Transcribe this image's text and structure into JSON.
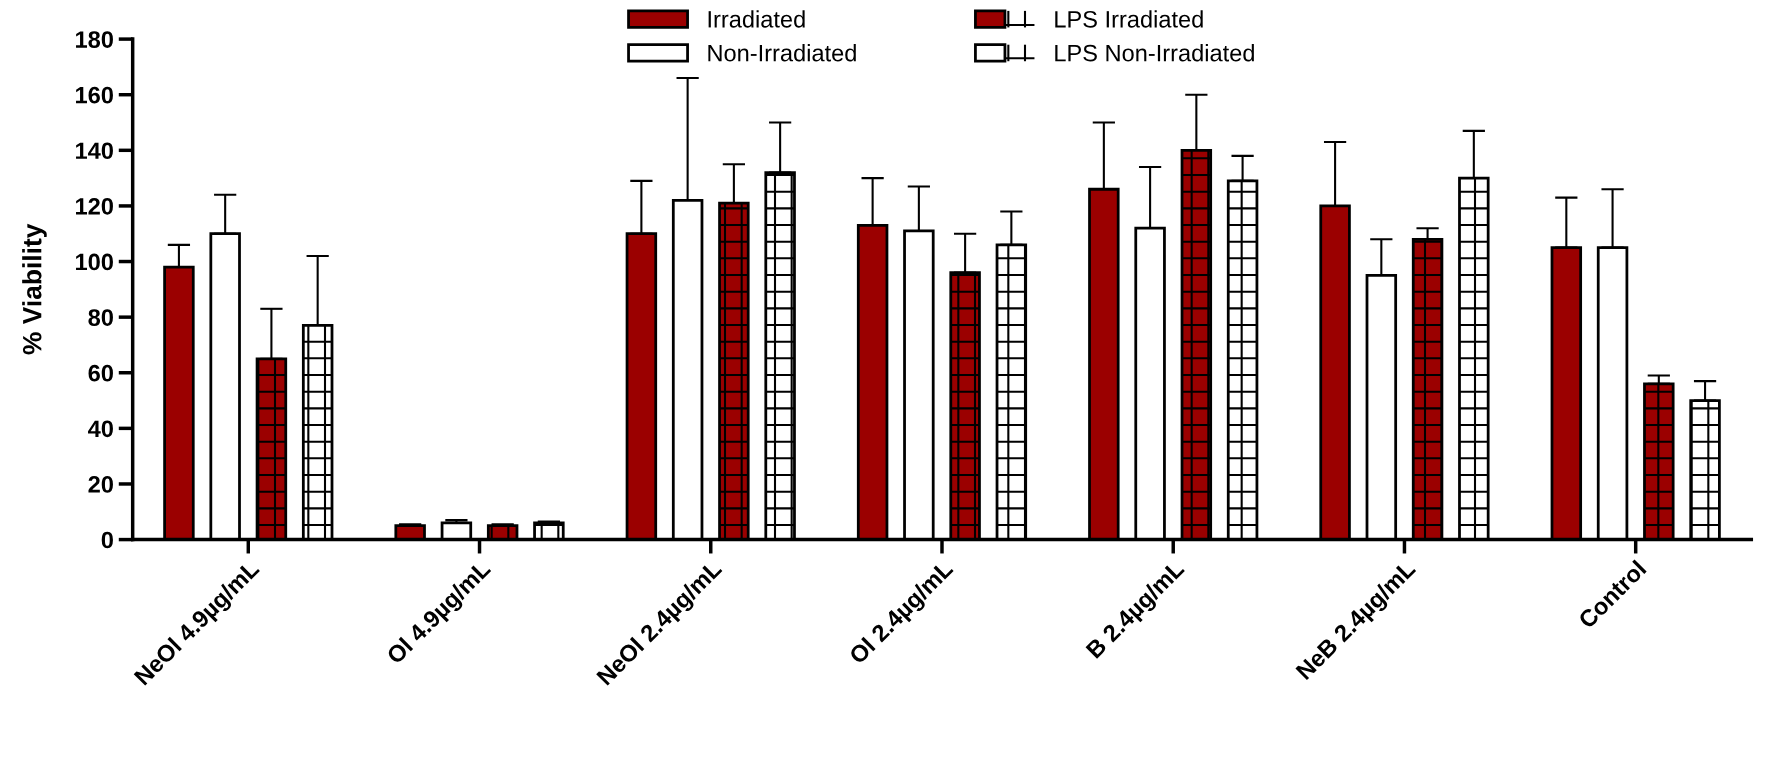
{
  "chart_data": {
    "type": "bar",
    "ylabel": "% Viability",
    "categories": [
      "NeOl 4.9µg/mL",
      "Ol 4.9µg/mL",
      "NeOl 2.4µg/mL",
      "Ol 2.4µg/mL",
      "B 2.4µg/mL",
      "NeB 2.4µg/mL",
      "Control"
    ],
    "series": [
      {
        "name": "Irradiated",
        "color": "#9b0000",
        "values": [
          98,
          5,
          110,
          113,
          126,
          120,
          105
        ],
        "errors": [
          [
            98,
            106
          ],
          [
            5,
            5.5
          ],
          [
            110,
            129
          ],
          [
            113,
            130
          ],
          [
            126,
            150
          ],
          [
            120,
            143
          ],
          [
            105,
            123
          ]
        ]
      },
      {
        "name": "Non-Irradiated",
        "color": "#ffffff",
        "values": [
          110,
          6,
          122,
          111,
          112,
          95,
          105
        ],
        "errors": [
          [
            110,
            124
          ],
          [
            6,
            7
          ],
          [
            122,
            166
          ],
          [
            111,
            127
          ],
          [
            112,
            134
          ],
          [
            95,
            108
          ],
          [
            105,
            126
          ]
        ]
      },
      {
        "name": "LPS Irradiated",
        "color": "#9b0000",
        "values": [
          65,
          5,
          121,
          96,
          140,
          108,
          56
        ],
        "errors": [
          [
            65,
            83
          ],
          [
            5,
            5.5
          ],
          [
            121,
            135
          ],
          [
            96,
            110
          ],
          [
            140,
            160
          ],
          [
            108,
            112
          ],
          [
            56,
            59
          ]
        ]
      },
      {
        "name": "LPS Non-Irradiated",
        "color": "#ffffff",
        "values": [
          77,
          6,
          132,
          106,
          129,
          130,
          50
        ],
        "errors": [
          [
            77,
            102
          ],
          [
            6,
            6.5
          ],
          [
            132,
            150
          ],
          [
            106,
            118
          ],
          [
            129,
            138
          ],
          [
            130,
            147
          ],
          [
            50,
            57
          ]
        ]
      }
    ],
    "ylim": [
      0,
      180
    ],
    "yticks": [
      0,
      20,
      40,
      60,
      80,
      100,
      120,
      140,
      160,
      180
    ],
    "grid": false,
    "legend": "top"
  }
}
